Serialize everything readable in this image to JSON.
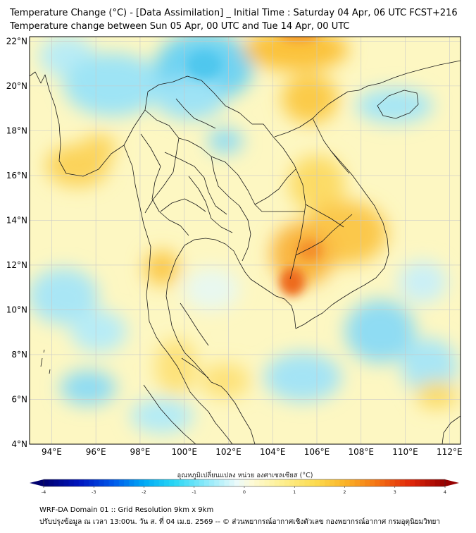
{
  "title_line1": "Temperature Change (°C) - [Data Assimilation] _ Initial Time : Saturday 04 Apr, 06 UTC FCST+216",
  "title_line2": "Temperature change between Sun 05 Apr, 00 UTC and Tue 14 Apr, 00 UTC",
  "map": {
    "lon_range": [
      93,
      112.5
    ],
    "lat_range": [
      4,
      22.2
    ],
    "lon_ticks": [
      "94°E",
      "96°E",
      "98°E",
      "100°E",
      "102°E",
      "104°E",
      "106°E",
      "108°E",
      "110°E",
      "112°E"
    ],
    "lat_ticks": [
      "22°N",
      "20°N",
      "18°N",
      "16°N",
      "14°N",
      "12°N",
      "10°N",
      "8°N",
      "6°N",
      "4°N"
    ],
    "grid": true,
    "colors": {
      "coast": "#1a1a1a",
      "grid": "#c8c8c8",
      "frame": "#000000"
    }
  },
  "colorbar": {
    "label": "อุณหภูมิเปลี่ยนแปลง หน่วย องศาเซลเซียส (°C)",
    "min": -4,
    "max": 4,
    "tick_labels": [
      "-4",
      "-3",
      "-2",
      "-1",
      "0",
      "1",
      "2",
      "3",
      "4"
    ]
  },
  "footer_line1": "WRF-DA Domain 01 :: Grid Resolution 9km x 9km",
  "footer_line2": "ปรับปรุงข้อมูล ณ เวลา 13:00น. วัน ส. ที่ 04 เม.ย. 2569 -- © ส่วนพยากรณ์อากาศเชิงตัวเลข กองพยากรณ์อากาศ กรมอุตุนิยมวิทยา"
}
